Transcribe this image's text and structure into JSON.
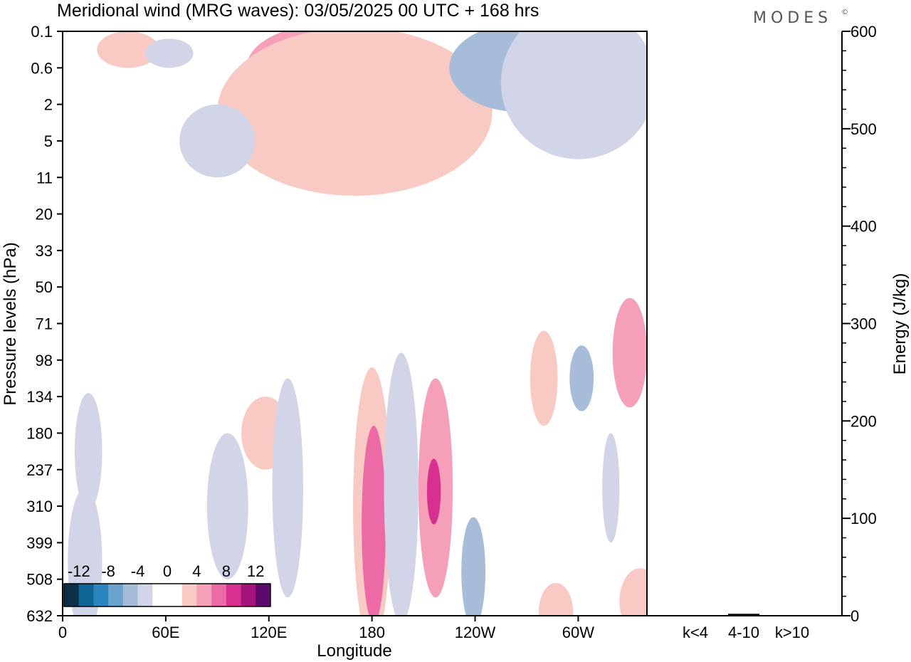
{
  "title": "Meridional wind (MRG waves):  03/05/2025  00 UTC  + 168 hrs",
  "brand": "MODES",
  "brand_mark": "©",
  "chart_data": [
    {
      "type": "heatmap",
      "xlabel": "Longitude",
      "ylabel": "Pressure levels (hPa)",
      "x_ticks": [
        "0",
        "60E",
        "120E",
        "180",
        "120W",
        "60W"
      ],
      "x_tick_degrees": [
        0,
        60,
        120,
        180,
        240,
        300
      ],
      "xlim": [
        0,
        340
      ],
      "y_ticks": [
        "0.1",
        "0.6",
        "2",
        "5",
        "11",
        "20",
        "33",
        "50",
        "71",
        "98",
        "134",
        "180",
        "237",
        "310",
        "399",
        "508",
        "632"
      ],
      "colorbar": {
        "tick_labels": [
          "-12",
          "-8",
          "-4",
          "0",
          "4",
          "8",
          "12"
        ],
        "colors": [
          "#0d3049",
          "#0e6494",
          "#2b85bd",
          "#6aa3cd",
          "#a6bcd9",
          "#d2d5e8",
          "#ffffff",
          "#ffffff",
          "#f9c9c4",
          "#f69fb8",
          "#ec6aa6",
          "#d83090",
          "#a3157c",
          "#5c0a6e"
        ]
      },
      "fields": [
        {
          "name": "upper-left-positive",
          "level": 1,
          "x": 38,
          "y": 0.5,
          "rx": 18,
          "ry": 0.5
        },
        {
          "name": "upper-left-negative",
          "level": -1,
          "x": 62,
          "y": 0.6,
          "rx": 14,
          "ry": 0.4
        },
        {
          "name": "stratosphere-positive-core",
          "level": 2,
          "x": 155,
          "y": 1.0,
          "rx": 48,
          "ry": 1.2
        },
        {
          "name": "stratosphere-positive-peak",
          "level": 4,
          "x": 168,
          "y": 1.1,
          "rx": 15,
          "ry": 0.5
        },
        {
          "name": "stratosphere-positive-broad",
          "level": 1,
          "x": 170,
          "y": 2.2,
          "rx": 80,
          "ry": 2.3
        },
        {
          "name": "stratosphere-negative-east",
          "level": -2,
          "x": 265,
          "y": 1.0,
          "rx": 40,
          "ry": 1.2
        },
        {
          "name": "stratosphere-negative-wide",
          "level": -1,
          "x": 300,
          "y": 1.4,
          "rx": 45,
          "ry": 2.1
        },
        {
          "name": "lower-strat-negative",
          "level": -1,
          "x": 90,
          "y": 3.0,
          "rx": 22,
          "ry": 1.0
        },
        {
          "name": "tropopause-positive-left",
          "level": 1,
          "x": 118,
          "y": 11,
          "rx": 14,
          "ry": 1.0
        },
        {
          "name": "negative-west-71",
          "level": -1,
          "x": 15,
          "y": 11.5,
          "rx": 8,
          "ry": 1.6
        },
        {
          "name": "negative-134",
          "level": -1,
          "x": 96,
          "y": 13,
          "rx": 12,
          "ry": 2.0
        },
        {
          "name": "negative-180",
          "level": -1,
          "x": 131,
          "y": 12.5,
          "rx": 9,
          "ry": 3.0
        },
        {
          "name": "positive-180-left",
          "level": 1,
          "x": 180,
          "y": 13,
          "rx": 11,
          "ry": 3.8
        },
        {
          "name": "positive-180-core",
          "level": 3,
          "x": 181,
          "y": 13.5,
          "rx": 7,
          "ry": 2.7
        },
        {
          "name": "negative-160W-core",
          "level": -3,
          "x": 197,
          "y": 11.0,
          "rx": 6,
          "ry": 1.7
        },
        {
          "name": "negative-160W-outer",
          "level": -1,
          "x": 197,
          "y": 12.5,
          "rx": 10,
          "ry": 3.7
        },
        {
          "name": "positive-140W",
          "level": 2,
          "x": 217,
          "y": 12.5,
          "rx": 10,
          "ry": 3.0
        },
        {
          "name": "positive-140W-peak",
          "level": 4,
          "x": 216,
          "y": 12.6,
          "rx": 4,
          "ry": 0.9
        },
        {
          "name": "negative-120W-lower",
          "level": -2,
          "x": 239,
          "y": 14.8,
          "rx": 7,
          "ry": 1.5
        },
        {
          "name": "positive-90W",
          "level": 1,
          "x": 280,
          "y": 9.5,
          "rx": 8,
          "ry": 1.3
        },
        {
          "name": "negative-60W",
          "level": -2,
          "x": 302,
          "y": 9.5,
          "rx": 7,
          "ry": 0.9
        },
        {
          "name": "positive-30W",
          "level": 2,
          "x": 330,
          "y": 8.8,
          "rx": 10,
          "ry": 1.5
        },
        {
          "name": "negative-40W-lower",
          "level": -1,
          "x": 319,
          "y": 12.5,
          "rx": 5,
          "ry": 1.5
        },
        {
          "name": "negative-15E-lower",
          "level": -1,
          "x": 13,
          "y": 14.5,
          "rx": 10,
          "ry": 2.0
        },
        {
          "name": "positive-80W-lower",
          "level": 1,
          "x": 287,
          "y": 15.9,
          "rx": 10,
          "ry": 0.8
        },
        {
          "name": "positive-60W-lower",
          "level": 1,
          "x": 336,
          "y": 15.6,
          "rx": 12,
          "ry": 0.9
        }
      ]
    },
    {
      "type": "bar",
      "ylabel": "Energy (J/kg)",
      "categories": [
        "k<4",
        "4-10",
        "k>10"
      ],
      "values": [
        0,
        2,
        0
      ],
      "ylim": [
        0,
        600
      ],
      "y_ticks": [
        "0",
        "100",
        "200",
        "300",
        "400",
        "500",
        "600"
      ]
    }
  ]
}
